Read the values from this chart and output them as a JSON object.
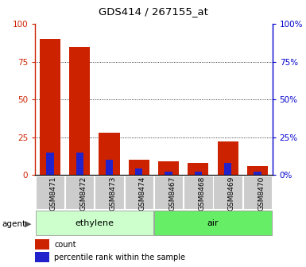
{
  "title": "GDS414 / 267155_at",
  "categories": [
    "GSM8471",
    "GSM8472",
    "GSM8473",
    "GSM8474",
    "GSM8467",
    "GSM8468",
    "GSM8469",
    "GSM8470"
  ],
  "red_values": [
    90,
    85,
    28,
    10,
    9,
    8,
    22,
    6
  ],
  "blue_values": [
    15,
    15,
    10,
    4,
    2,
    2,
    8,
    2
  ],
  "ylim": [
    0,
    100
  ],
  "yticks": [
    0,
    25,
    50,
    75,
    100
  ],
  "group_labels": [
    "ethylene",
    "air"
  ],
  "group_colors": [
    "#ccffcc",
    "#66ee66"
  ],
  "agent_label": "agent",
  "legend_items": [
    "count",
    "percentile rank within the sample"
  ],
  "legend_colors": [
    "#cc2200",
    "#2222cc"
  ],
  "bar_color_red": "#cc2200",
  "bar_color_blue": "#2222cc",
  "left_axis_color": "#cc2200",
  "right_axis_color": "#0000cc",
  "xticklabel_bg": "#cccccc",
  "grid_yticks": [
    25,
    50,
    75
  ]
}
